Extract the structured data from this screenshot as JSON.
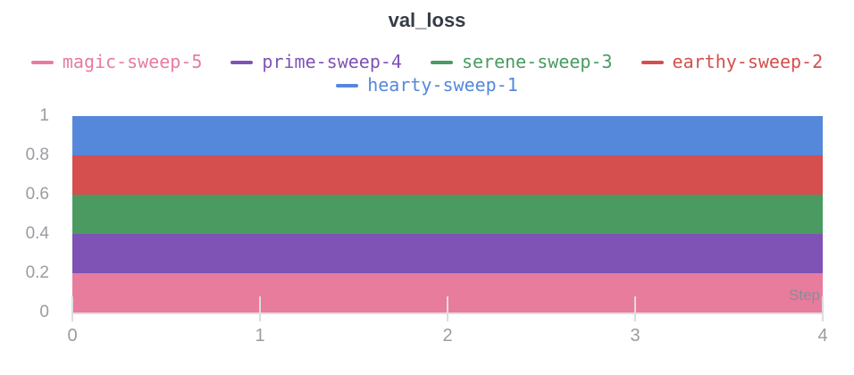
{
  "page": {
    "background": "#FFFFFF"
  },
  "chart_data": {
    "type": "area",
    "title": "val_loss",
    "xlabel": "Step",
    "ylabel": "",
    "x": [
      0,
      1,
      2,
      3,
      4
    ],
    "xlim": [
      0,
      4
    ],
    "ylim": [
      0,
      1
    ],
    "xticks": [
      "0",
      "1",
      "2",
      "3",
      "4"
    ],
    "yticks": [
      "1",
      "0.8",
      "0.6",
      "0.4",
      "0.2",
      "0"
    ],
    "grid": false,
    "legend_position": "top",
    "draw_order_note": "hearty-sweep-1 painted first (back), magic-sweep-5 painted last (front); each area fills from 0 to its constant value",
    "series": [
      {
        "name": "magic-sweep-5",
        "color": "#E87C9D",
        "values": [
          0.2,
          0.2,
          0.2,
          0.2,
          0.2
        ]
      },
      {
        "name": "prime-sweep-4",
        "color": "#7E53B5",
        "values": [
          0.4,
          0.4,
          0.4,
          0.4,
          0.4
        ]
      },
      {
        "name": "serene-sweep-3",
        "color": "#4A9A62",
        "values": [
          0.6,
          0.6,
          0.6,
          0.6,
          0.6
        ]
      },
      {
        "name": "earthy-sweep-2",
        "color": "#D44F4D",
        "values": [
          0.8,
          0.8,
          0.8,
          0.8,
          0.8
        ]
      },
      {
        "name": "hearty-sweep-1",
        "color": "#5588DB",
        "values": [
          1.0,
          1.0,
          1.0,
          1.0,
          1.0
        ]
      }
    ],
    "colors": {
      "title_text": "#363C46",
      "axis_text": "#9B9BA1",
      "axis_line": "#DDDDE1",
      "step_label": "#8D8B96"
    }
  }
}
